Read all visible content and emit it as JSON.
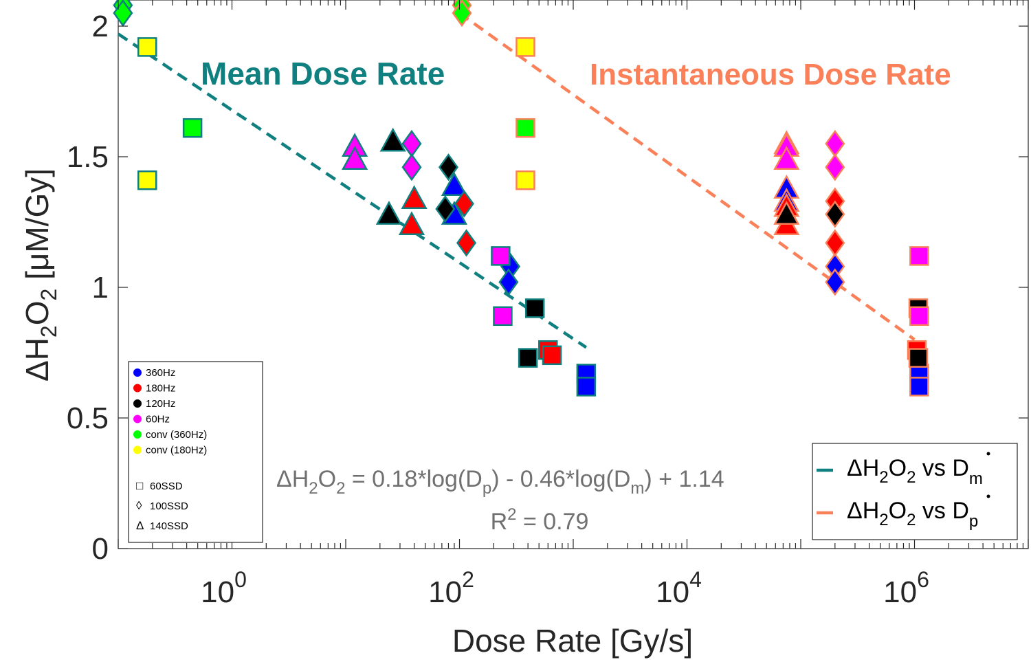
{
  "chart_data": {
    "type": "scatter",
    "x_scale": "log",
    "xlabel": "Dose Rate [Gy/s]",
    "ylabel": "ΔH₂O₂ [μM/Gy]",
    "ylabel_parts": {
      "delta": "ΔH",
      "sub1": "2",
      "o": "O",
      "sub2": "2",
      "unit": " [μM/Gy]"
    },
    "xlim": [
      0.1,
      10000000
    ],
    "ylim": [
      0,
      2.1
    ],
    "grid": false,
    "xticks": [
      1,
      100,
      10000,
      1000000
    ],
    "xtick_labels": [
      {
        "base": "10",
        "exp": "0"
      },
      {
        "base": "10",
        "exp": "2"
      },
      {
        "base": "10",
        "exp": "4"
      },
      {
        "base": "10",
        "exp": "6"
      }
    ],
    "yticks": [
      0,
      0.5,
      1,
      1.5,
      2
    ],
    "ytick_labels": [
      "0",
      "0.5",
      "1",
      "1.5",
      "2"
    ],
    "annotations": {
      "mean_title": "Mean Dose Rate",
      "inst_title": "Instantaneous Dose Rate",
      "eq_a": "ΔH",
      "eq_sub2a": "2",
      "eq_o": "O",
      "eq_sub2b": "2",
      "eq_mid": " = 0.18*log(D",
      "eq_p": "p",
      "eq_mid2": ") - 0.46*log(D",
      "eq_m": "m",
      "eq_end": ") + 1.14",
      "r2_a": "R",
      "r2_sup": "2",
      "r2_b": " = 0.79"
    },
    "colors": {
      "mean": "#0f7f7f",
      "inst": "#f98058",
      "360Hz": "#0000ff",
      "180Hz": "#ff0000",
      "120Hz": "#000000",
      "60Hz": "#ff00ff",
      "conv360": "#00ff00",
      "conv180": "#ffff00"
    },
    "color_legend": [
      {
        "label": "360Hz",
        "color": "#0000ff"
      },
      {
        "label": "180Hz",
        "color": "#ff0000"
      },
      {
        "label": "120Hz",
        "color": "#000000"
      },
      {
        "label": "60Hz",
        "color": "#ff00ff"
      },
      {
        "label": "conv (360Hz)",
        "color": "#00ff00"
      },
      {
        "label": "conv (180Hz)",
        "color": "#ffff00"
      }
    ],
    "shape_legend": [
      {
        "label": "60SSD",
        "symbol": "□"
      },
      {
        "label": "100SSD",
        "symbol": "◊"
      },
      {
        "label": "140SSD",
        "symbol": "Δ"
      }
    ],
    "line_legend": [
      {
        "series": "mean",
        "text": {
          "a": "ΔH",
          "s1": "2",
          "o": "O",
          "s2": "2",
          "vs": " vs D",
          "sub": "m"
        }
      },
      {
        "series": "inst",
        "text": {
          "a": "ΔH",
          "s1": "2",
          "o": "O",
          "s2": "2",
          "vs": " vs D",
          "sub": "p"
        }
      }
    ],
    "fit_lines": [
      {
        "series": "mean",
        "x": [
          0.1,
          1300
        ],
        "y": [
          1.97,
          0.77
        ]
      },
      {
        "series": "inst",
        "x": [
          100,
          1000000
        ],
        "y": [
          2.05,
          0.8
        ]
      }
    ],
    "series": [
      {
        "name": "360Hz",
        "ref": "mean",
        "shape": "square",
        "points": [
          [
            1300,
            0.67
          ],
          [
            1300,
            0.62
          ]
        ]
      },
      {
        "name": "360Hz",
        "ref": "mean",
        "shape": "diamond",
        "points": [
          [
            280,
            1.08
          ],
          [
            270,
            1.02
          ]
        ]
      },
      {
        "name": "360Hz",
        "ref": "mean",
        "shape": "triangle",
        "points": [
          [
            90,
            1.39
          ],
          [
            90,
            1.28
          ]
        ]
      },
      {
        "name": "180Hz",
        "ref": "mean",
        "shape": "square",
        "points": [
          [
            600,
            0.76
          ],
          [
            650,
            0.74
          ]
        ]
      },
      {
        "name": "180Hz",
        "ref": "mean",
        "shape": "diamond",
        "points": [
          [
            110,
            1.32
          ],
          [
            115,
            1.17
          ]
        ]
      },
      {
        "name": "180Hz",
        "ref": "mean",
        "shape": "triangle",
        "points": [
          [
            40,
            1.34
          ],
          [
            38,
            1.24
          ]
        ]
      },
      {
        "name": "120Hz",
        "ref": "mean",
        "shape": "square",
        "points": [
          [
            460,
            0.92
          ],
          [
            400,
            0.73
          ]
        ]
      },
      {
        "name": "120Hz",
        "ref": "mean",
        "shape": "diamond",
        "points": [
          [
            80,
            1.46
          ],
          [
            75,
            1.3
          ]
        ]
      },
      {
        "name": "120Hz",
        "ref": "mean",
        "shape": "triangle",
        "points": [
          [
            26,
            1.56
          ],
          [
            24,
            1.28
          ]
        ]
      },
      {
        "name": "60Hz",
        "ref": "mean",
        "shape": "square",
        "points": [
          [
            230,
            1.12
          ],
          [
            240,
            0.89
          ]
        ]
      },
      {
        "name": "60Hz",
        "ref": "mean",
        "shape": "diamond",
        "points": [
          [
            38,
            1.55
          ],
          [
            38,
            1.46
          ]
        ]
      },
      {
        "name": "60Hz",
        "ref": "mean",
        "shape": "triangle",
        "points": [
          [
            12,
            1.54
          ],
          [
            12,
            1.49
          ]
        ]
      },
      {
        "name": "conv (360Hz)",
        "ref": "mean",
        "shape": "square",
        "points": [
          [
            0.45,
            1.61
          ]
        ]
      },
      {
        "name": "conv (360Hz)",
        "ref": "mean",
        "shape": "diamond",
        "points": [
          [
            0.11,
            2.08
          ],
          [
            0.11,
            2.05
          ]
        ]
      },
      {
        "name": "conv (180Hz)",
        "ref": "mean",
        "shape": "square",
        "points": [
          [
            0.18,
            1.92
          ],
          [
            0.18,
            1.41
          ]
        ]
      },
      {
        "name": "360Hz",
        "ref": "inst",
        "shape": "square",
        "points": [
          [
            1100000,
            0.67
          ],
          [
            1100000,
            0.62
          ]
        ]
      },
      {
        "name": "360Hz",
        "ref": "inst",
        "shape": "diamond",
        "points": [
          [
            200000,
            1.08
          ],
          [
            200000,
            1.02
          ]
        ]
      },
      {
        "name": "360Hz",
        "ref": "inst",
        "shape": "triangle",
        "points": [
          [
            75000,
            1.38
          ],
          [
            75000,
            1.33
          ]
        ]
      },
      {
        "name": "180Hz",
        "ref": "inst",
        "shape": "square",
        "points": [
          [
            1050000,
            0.76
          ]
        ]
      },
      {
        "name": "180Hz",
        "ref": "inst",
        "shape": "diamond",
        "points": [
          [
            200000,
            1.33
          ],
          [
            200000,
            1.17
          ]
        ]
      },
      {
        "name": "180Hz",
        "ref": "inst",
        "shape": "triangle",
        "points": [
          [
            75000,
            1.31
          ],
          [
            75000,
            1.24
          ]
        ]
      },
      {
        "name": "120Hz",
        "ref": "inst",
        "shape": "square",
        "points": [
          [
            1080000,
            0.92
          ],
          [
            1080000,
            0.73
          ]
        ]
      },
      {
        "name": "120Hz",
        "ref": "inst",
        "shape": "diamond",
        "points": [
          [
            200000,
            1.28
          ]
        ]
      },
      {
        "name": "120Hz",
        "ref": "inst",
        "shape": "triangle",
        "points": [
          [
            75000,
            1.55
          ],
          [
            75000,
            1.28
          ]
        ]
      },
      {
        "name": "60Hz",
        "ref": "inst",
        "shape": "square",
        "points": [
          [
            1100000,
            1.12
          ],
          [
            1100000,
            0.89
          ]
        ]
      },
      {
        "name": "60Hz",
        "ref": "inst",
        "shape": "diamond",
        "points": [
          [
            200000,
            1.55
          ],
          [
            200000,
            1.46
          ]
        ]
      },
      {
        "name": "60Hz",
        "ref": "inst",
        "shape": "triangle",
        "points": [
          [
            75000,
            1.54
          ],
          [
            75000,
            1.49
          ]
        ]
      },
      {
        "name": "conv (360Hz)",
        "ref": "inst",
        "shape": "square",
        "points": [
          [
            380,
            1.61
          ]
        ]
      },
      {
        "name": "conv (360Hz)",
        "ref": "inst",
        "shape": "diamond",
        "points": [
          [
            105,
            2.08
          ],
          [
            105,
            2.05
          ]
        ]
      },
      {
        "name": "conv (180Hz)",
        "ref": "inst",
        "shape": "square",
        "points": [
          [
            380,
            1.92
          ],
          [
            380,
            1.41
          ]
        ]
      }
    ]
  }
}
